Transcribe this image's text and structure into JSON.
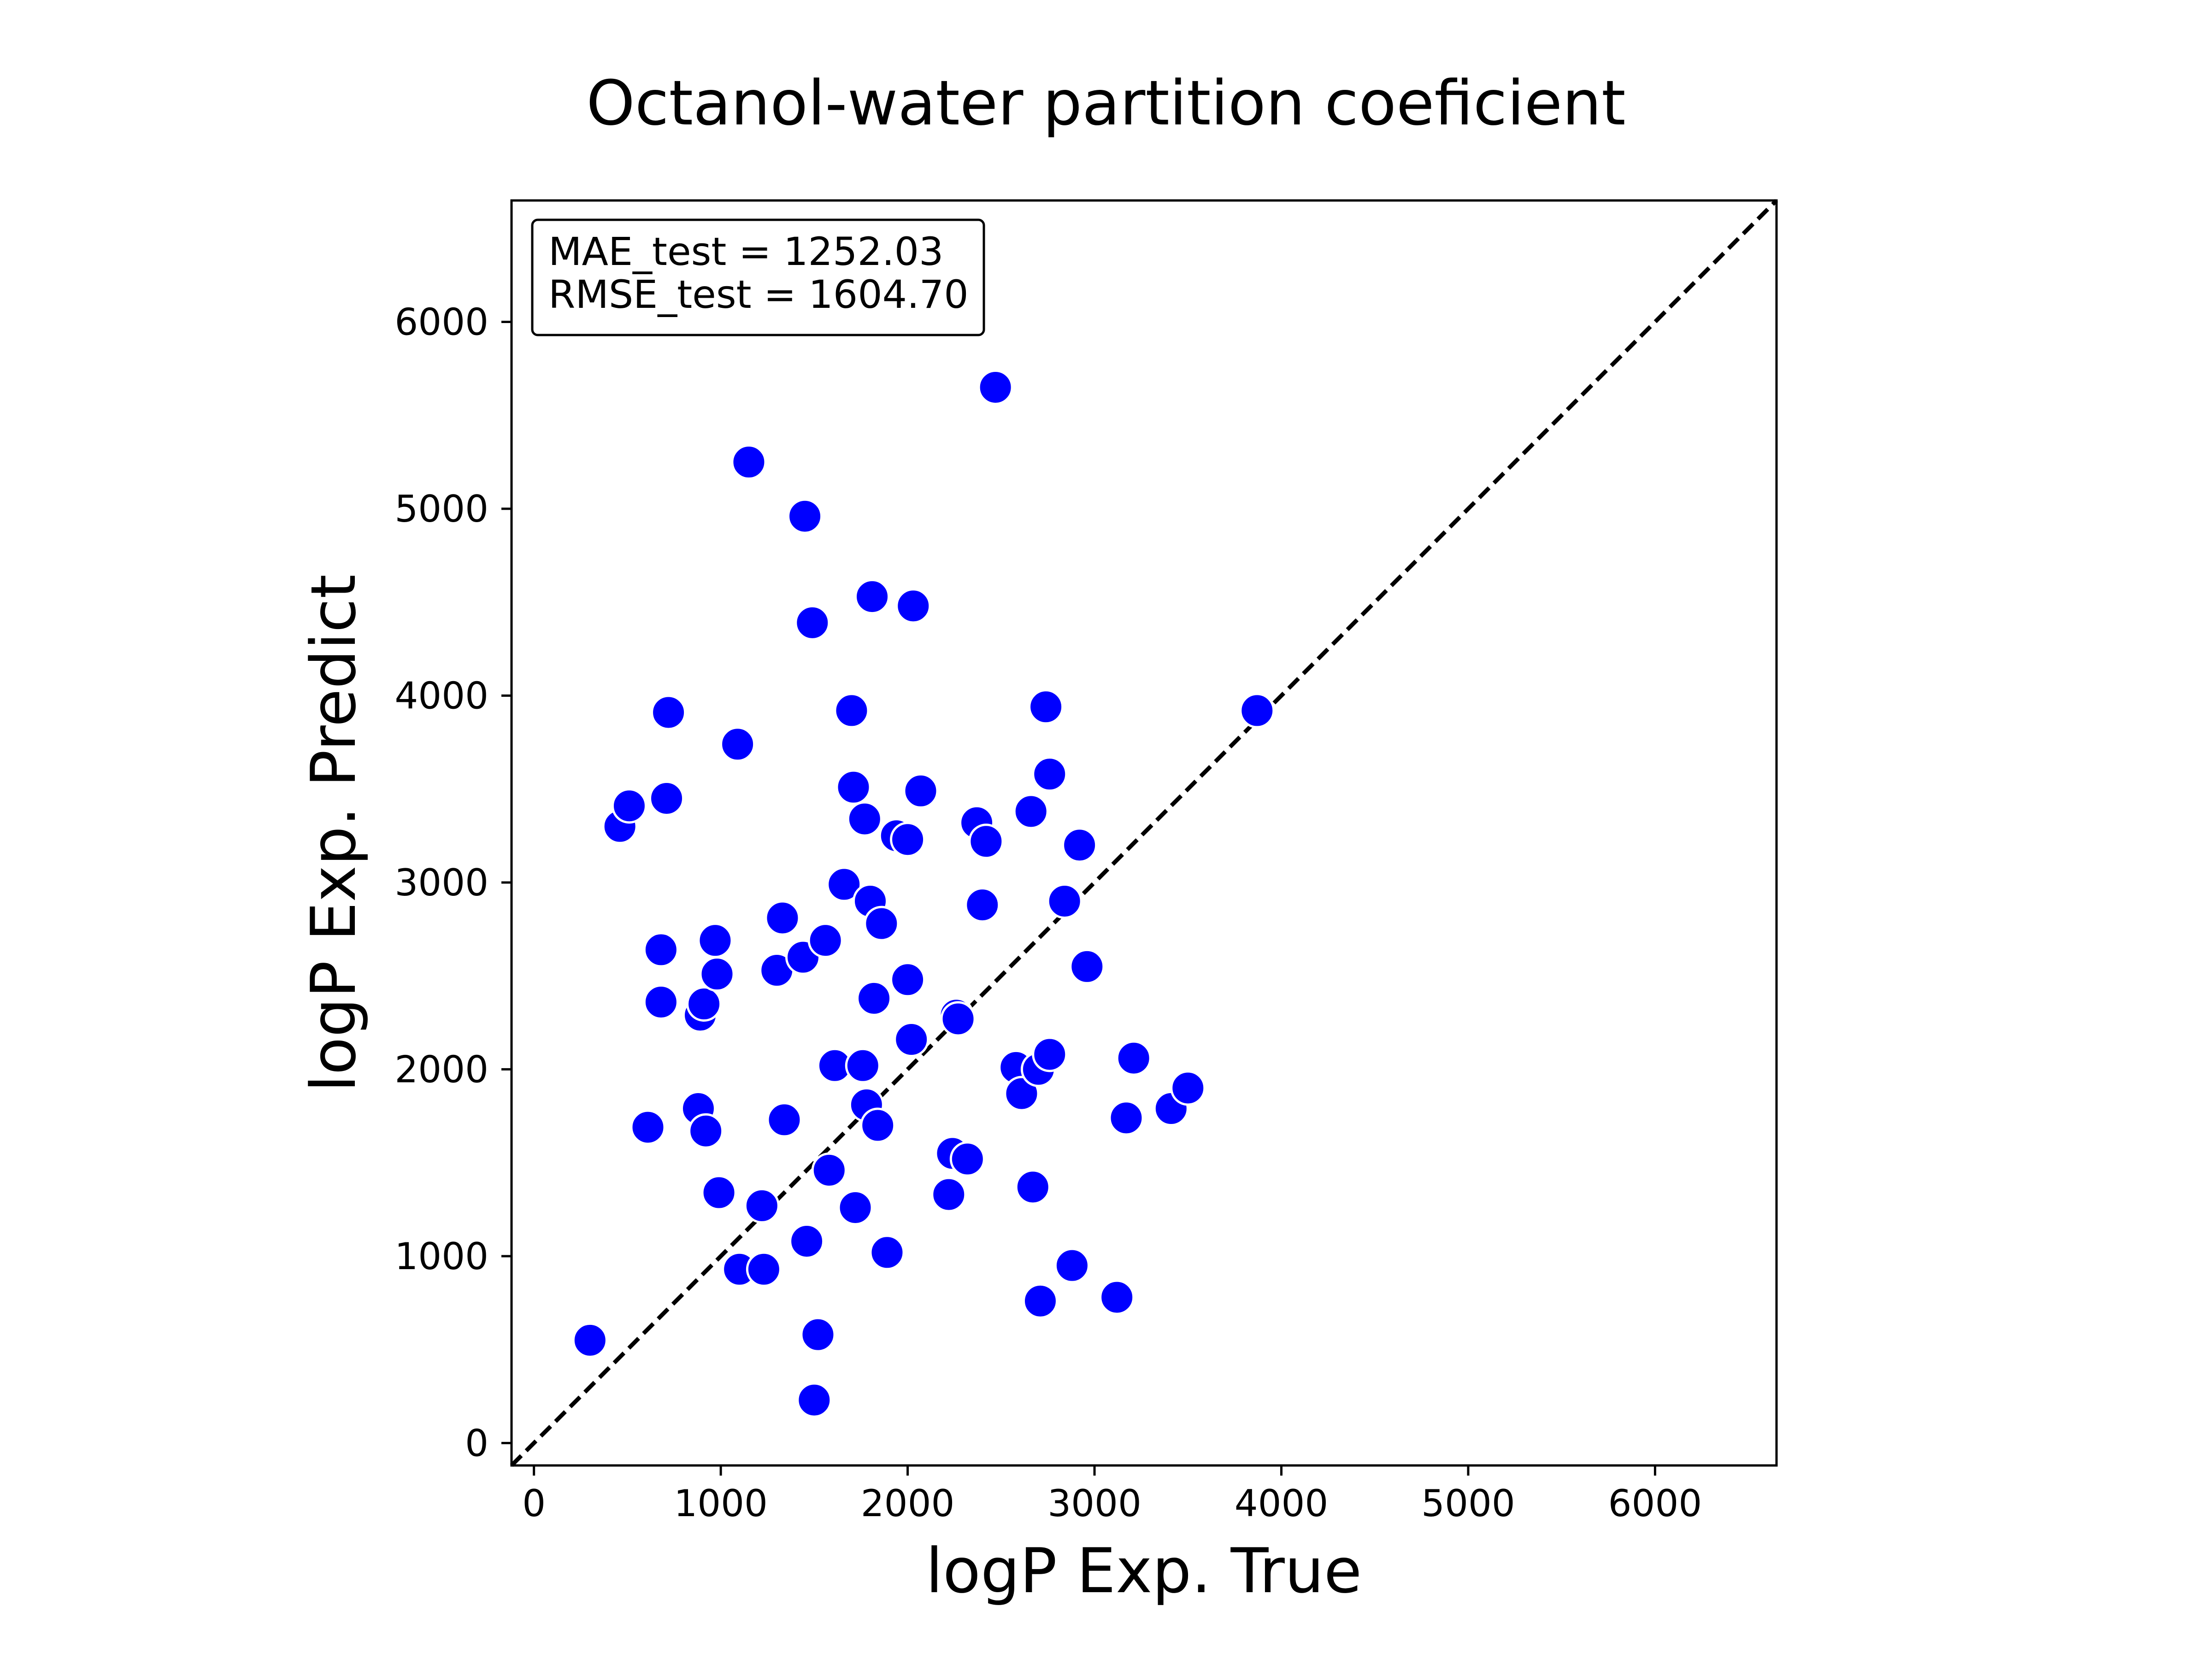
{
  "chart_data": {
    "type": "scatter",
    "title": "Octanol-water partition coeficient",
    "xlabel": "logP Exp. True",
    "ylabel": "logP Exp. Predict",
    "xlim": [
      -120,
      6650
    ],
    "ylim": [
      -120,
      6650
    ],
    "xticks": [
      0,
      1000,
      2000,
      3000,
      4000,
      5000,
      6000
    ],
    "yticks": [
      0,
      1000,
      2000,
      3000,
      4000,
      5000,
      6000
    ],
    "grid": false,
    "legend": "none",
    "reference_line": {
      "style": "dashed",
      "color": "#000000",
      "from": [
        -120,
        -120
      ],
      "to": [
        6650,
        6650
      ]
    },
    "annotation": {
      "placement": "top-left",
      "lines": [
        "MAE_test = 1252.03",
        "RMSE_test = 1604.70"
      ]
    },
    "marker": {
      "color": "#0000ff",
      "edge_color": "#ffffff"
    },
    "points": [
      [
        300,
        550
      ],
      [
        460,
        3300
      ],
      [
        510,
        3410
      ],
      [
        610,
        1690
      ],
      [
        680,
        2640
      ],
      [
        680,
        2360
      ],
      [
        710,
        3450
      ],
      [
        720,
        3910
      ],
      [
        880,
        1790
      ],
      [
        890,
        2290
      ],
      [
        910,
        2350
      ],
      [
        920,
        1670
      ],
      [
        970,
        2690
      ],
      [
        980,
        2510
      ],
      [
        990,
        1340
      ],
      [
        1090,
        3740
      ],
      [
        1100,
        930
      ],
      [
        1150,
        5250
      ],
      [
        1220,
        1270
      ],
      [
        1230,
        930
      ],
      [
        1300,
        2530
      ],
      [
        1330,
        2810
      ],
      [
        1340,
        1730
      ],
      [
        1440,
        2600
      ],
      [
        1450,
        4960
      ],
      [
        1460,
        1080
      ],
      [
        1490,
        4390
      ],
      [
        1500,
        230
      ],
      [
        1520,
        580
      ],
      [
        1560,
        2690
      ],
      [
        1580,
        1460
      ],
      [
        1610,
        2020
      ],
      [
        1660,
        2990
      ],
      [
        1700,
        3920
      ],
      [
        1710,
        3510
      ],
      [
        1720,
        1260
      ],
      [
        1760,
        2020
      ],
      [
        1770,
        3340
      ],
      [
        1780,
        1810
      ],
      [
        1800,
        2900
      ],
      [
        1810,
        4530
      ],
      [
        1820,
        2380
      ],
      [
        1840,
        1700
      ],
      [
        1860,
        2780
      ],
      [
        1890,
        1020
      ],
      [
        1940,
        3250
      ],
      [
        2000,
        3230
      ],
      [
        2000,
        2480
      ],
      [
        2020,
        2160
      ],
      [
        2030,
        4480
      ],
      [
        2070,
        3490
      ],
      [
        2220,
        1330
      ],
      [
        2240,
        1550
      ],
      [
        2260,
        2290
      ],
      [
        2270,
        2270
      ],
      [
        2320,
        1520
      ],
      [
        2370,
        3320
      ],
      [
        2400,
        2880
      ],
      [
        2420,
        3220
      ],
      [
        2470,
        5650
      ],
      [
        2580,
        2010
      ],
      [
        2610,
        1870
      ],
      [
        2660,
        3380
      ],
      [
        2670,
        1370
      ],
      [
        2700,
        2000
      ],
      [
        2710,
        760
      ],
      [
        2740,
        3940
      ],
      [
        2760,
        3580
      ],
      [
        2760,
        2080
      ],
      [
        2840,
        2900
      ],
      [
        2880,
        950
      ],
      [
        2920,
        3200
      ],
      [
        2960,
        2550
      ],
      [
        3120,
        780
      ],
      [
        3170,
        1740
      ],
      [
        3210,
        2060
      ],
      [
        3410,
        1790
      ],
      [
        3500,
        1900
      ],
      [
        3870,
        3920
      ]
    ]
  }
}
